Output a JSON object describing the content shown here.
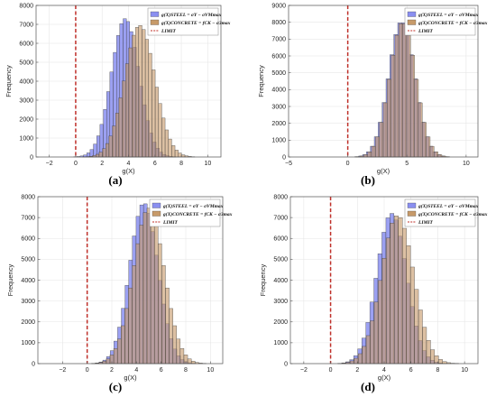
{
  "colors": {
    "steel": "#8a8ff0",
    "concrete": "#c79a6a",
    "overlap": "#8a7060",
    "limit": "#c0302a",
    "axis": "#555555",
    "grid": "#e6e6e6",
    "bar_edge": "#3a3a3a"
  },
  "chart_data": [
    {
      "type": "bar",
      "panel_label": "(a)",
      "xlabel": "g(X)",
      "ylabel": "Frequency",
      "xlim": [
        -3,
        11
      ],
      "ylim": [
        0,
        8000
      ],
      "xticks": [
        -2,
        0,
        2,
        4,
        6,
        8,
        10
      ],
      "yticks": [
        0,
        1000,
        2000,
        3000,
        4000,
        5000,
        6000,
        7000,
        8000
      ],
      "limit_x": 0,
      "legend_position": "top-right",
      "legend": [
        "g(X)STEEL = σY − σVMmax",
        "g(X)CONCRETE = fCK − σ3max",
        "LIMIT"
      ],
      "series": [
        {
          "name": "g(X)STEEL = σY − σVMmax",
          "mean": 3.75,
          "std": 1.05,
          "peak": 7300,
          "bin": 0.25
        },
        {
          "name": "g(X)CONCRETE = fCK − σ3max",
          "mean": 4.85,
          "std": 1.15,
          "peak": 6950,
          "bin": 0.25
        }
      ]
    },
    {
      "type": "bar",
      "panel_label": "(b)",
      "xlabel": "g(X)",
      "ylabel": "Frequency",
      "xlim": [
        -5,
        11
      ],
      "ylim": [
        0,
        9000
      ],
      "xticks": [
        -5,
        0,
        5,
        10
      ],
      "yticks": [
        0,
        1000,
        2000,
        3000,
        4000,
        5000,
        6000,
        7000,
        8000,
        9000
      ],
      "limit_x": 0,
      "legend_position": "top-right",
      "legend": [
        "g(X)STEEL = σY − σVMmax",
        "g(X)CONCRETE = fCK − σ3max",
        "LIMIT"
      ],
      "series": [
        {
          "name": "g(X)STEEL = σY − σVMmax",
          "mean": 4.55,
          "std": 1.1,
          "peak": 8050,
          "bin": 0.33
        },
        {
          "name": "g(X)CONCRETE = fCK − σ3max",
          "mean": 4.65,
          "std": 1.1,
          "peak": 8000,
          "bin": 0.33
        }
      ]
    },
    {
      "type": "bar",
      "panel_label": "(c)",
      "xlabel": "g(X)",
      "ylabel": "Frequency",
      "xlim": [
        -4,
        11
      ],
      "ylim": [
        0,
        8000
      ],
      "xticks": [
        -2,
        0,
        2,
        4,
        6,
        8,
        10
      ],
      "yticks": [
        0,
        1000,
        2000,
        3000,
        4000,
        5000,
        6000,
        7000,
        8000
      ],
      "limit_x": 0,
      "legend_position": "top-right",
      "legend": [
        "g(X)STEEL = σY − σVMmax",
        "g(X)CONCRETE = fCK − σ3max",
        "LIMIT"
      ],
      "series": [
        {
          "name": "g(X)STEEL = σY − σVMmax",
          "mean": 4.6,
          "std": 1.15,
          "peak": 7700,
          "bin": 0.3
        },
        {
          "name": "g(X)CONCRETE = fCK − σ3max",
          "mean": 5.0,
          "std": 1.25,
          "peak": 7450,
          "bin": 0.3
        }
      ]
    },
    {
      "type": "bar",
      "panel_label": "(d)",
      "xlabel": "g(X)",
      "ylabel": "Frequency",
      "xlim": [
        -3,
        11
      ],
      "ylim": [
        0,
        8000
      ],
      "xticks": [
        -2,
        0,
        2,
        4,
        6,
        8,
        10
      ],
      "yticks": [
        0,
        1000,
        2000,
        3000,
        4000,
        5000,
        6000,
        7000,
        8000
      ],
      "limit_x": 0,
      "legend_position": "top-right",
      "legend": [
        "g(X)STEEL = σY − σVMmax",
        "g(X)CONCRETE = fCK − σ3max",
        "LIMIT"
      ],
      "series": [
        {
          "name": "g(X)STEEL = σY − σVMmax",
          "mean": 4.55,
          "std": 1.1,
          "peak": 7200,
          "bin": 0.3
        },
        {
          "name": "g(X)CONCRETE = fCK − σ3max",
          "mean": 5.0,
          "std": 1.2,
          "peak": 7100,
          "bin": 0.3
        }
      ]
    }
  ]
}
